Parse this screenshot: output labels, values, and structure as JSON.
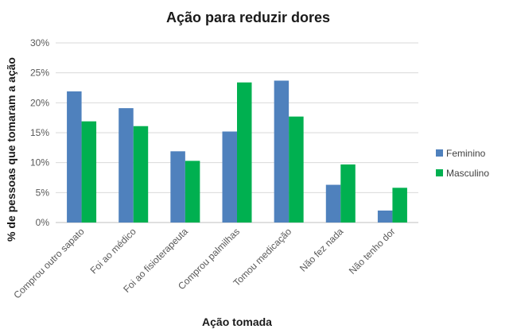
{
  "chart_data": {
    "type": "bar",
    "title": "Ação para reduzir dores",
    "xlabel": "Ação tomada",
    "ylabel": "% de pessoas que tomaram a ação",
    "categories": [
      "Comprou outro sapato",
      "Foi ao médico",
      "Foi ao fisioterapeuta",
      "Comprou palmilhas",
      "Tomou medicação",
      "Não fez nada",
      "Não tenho dor"
    ],
    "series": [
      {
        "name": "Feminino",
        "color": "#4f81bd",
        "values": [
          21.9,
          19.1,
          11.9,
          15.2,
          23.7,
          6.3,
          2.0
        ]
      },
      {
        "name": "Masculino",
        "color": "#00b050",
        "values": [
          16.9,
          16.1,
          10.3,
          23.4,
          17.7,
          9.7,
          5.8
        ]
      }
    ],
    "ylim": [
      0,
      30
    ],
    "yticks": [
      "0%",
      "5%",
      "10%",
      "15%",
      "20%",
      "25%",
      "30%"
    ],
    "grid": true,
    "legend_position": "right"
  }
}
